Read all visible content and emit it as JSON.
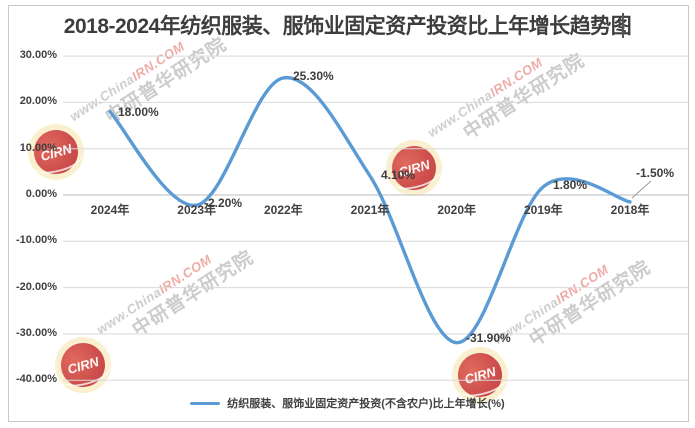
{
  "title": "2018-2024年纺织服装、服饰业固定资产投资比上年增长趋势图",
  "legend": {
    "label": "纺织服装、服饰业固定资产投资(不含农户)比上年增长(%)"
  },
  "watermark": {
    "url_gray": "www.China",
    "url_red": "IRN.COM",
    "brand": "中研普华研究院",
    "badge": "CIRN"
  },
  "colors": {
    "line": "#5B9BD5",
    "grid": "#d9d9d9",
    "zero_axis": "#bdbdbd",
    "leader": "#9b9b9b"
  },
  "chart_data": {
    "type": "line",
    "smooth": true,
    "title": "2018-2024年纺织服装、服饰业固定资产投资比上年增长趋势图",
    "series_name": "纺织服装、服饰业固定资产投资(不含农户)比上年增长(%)",
    "categories": [
      "2024年",
      "2023年",
      "2022年",
      "2021年",
      "2020年",
      "2019年",
      "2018年"
    ],
    "values": [
      18.0,
      -2.2,
      25.3,
      4.1,
      -31.9,
      1.8,
      -1.5
    ],
    "point_labels": [
      "18.00%",
      "-2.20%",
      "25.30%",
      "4.10%",
      "-31.90%",
      "1.80%",
      "-1.50%"
    ],
    "ytick_labels": [
      "30.00%",
      "20.00%",
      "10.00%",
      "0.00%",
      "-10.00%",
      "-20.00%",
      "-30.00%",
      "-40.00%"
    ],
    "ytick_values": [
      30,
      20,
      10,
      0,
      -10,
      -20,
      -30,
      -40
    ],
    "ylim": [
      -40,
      30
    ],
    "grid": true,
    "legend_position": "bottom"
  }
}
